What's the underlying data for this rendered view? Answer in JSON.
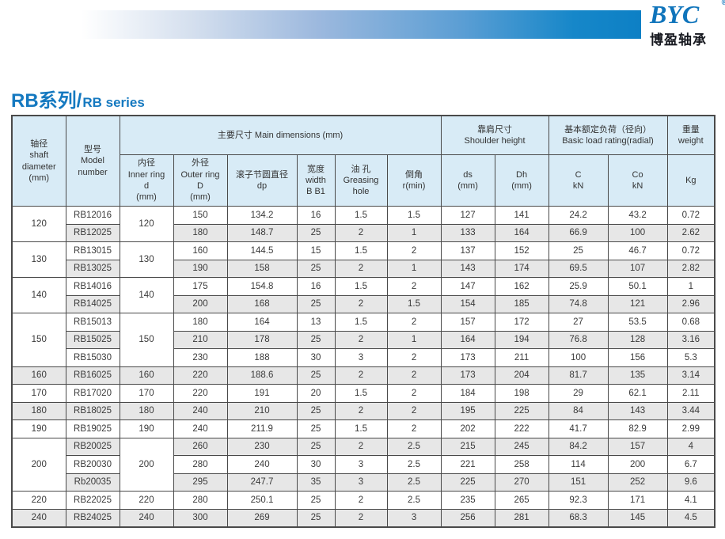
{
  "brand": {
    "logo_text": "BYC",
    "registered": "®",
    "logo_subtext": "博盈轴承"
  },
  "page": {
    "title_zh": "RB系列/",
    "title_en": "RB series"
  },
  "colors": {
    "brand_blue": "#0d80c5",
    "title_blue": "#1579c0",
    "header_cell_bg": "#d8ebf6",
    "alt_row_bg": "#e7e7e7",
    "table_border": "#4a4a4a"
  },
  "table": {
    "group_headers": {
      "main_dimensions": "主要尺寸 Main dimensions (mm)",
      "shoulder_height": "靠肩尺寸\nShoulder height",
      "basic_load": "基本额定负荷（径向）\nBasic load rating(radial)",
      "weight": "重量\nweight"
    },
    "columns": {
      "shaft": "轴径\nshaft\ndiameter\n(mm)",
      "model": "型号\nModel\nnumber",
      "inner": "内径\nInner ring\nd\n(mm)",
      "outer": "外径\nOuter ring\nD\n(mm)",
      "dp": "滚子节圆直径\ndp",
      "width": "宽度\nwidth\nB B1",
      "grease": "油 孔\nGreasing\nhole",
      "chamfer": "倒角\nr(min)",
      "ds": "ds\n(mm)",
      "dh": "Dh\n(mm)",
      "c": "C\nkN",
      "co": "Co\nkN",
      "kg": "Kg"
    },
    "groups": [
      {
        "shaft": "120",
        "inner": "120",
        "rows": [
          [
            "RB12016",
            "150",
            "134.2",
            "16",
            "1.5",
            "1.5",
            "127",
            "141",
            "24.2",
            "43.2",
            "0.72"
          ],
          [
            "RB12025",
            "180",
            "148.7",
            "25",
            "2",
            "1",
            "133",
            "164",
            "66.9",
            "100",
            "2.62"
          ]
        ]
      },
      {
        "shaft": "130",
        "inner": "130",
        "rows": [
          [
            "RB13015",
            "160",
            "144.5",
            "15",
            "1.5",
            "2",
            "137",
            "152",
            "25",
            "46.7",
            "0.72"
          ],
          [
            "RB13025",
            "190",
            "158",
            "25",
            "2",
            "1",
            "143",
            "174",
            "69.5",
            "107",
            "2.82"
          ]
        ]
      },
      {
        "shaft": "140",
        "inner": "140",
        "rows": [
          [
            "RB14016",
            "175",
            "154.8",
            "16",
            "1.5",
            "2",
            "147",
            "162",
            "25.9",
            "50.1",
            "1"
          ],
          [
            "RB14025",
            "200",
            "168",
            "25",
            "2",
            "1.5",
            "154",
            "185",
            "74.8",
            "121",
            "2.96"
          ]
        ]
      },
      {
        "shaft": "150",
        "inner": "150",
        "rows": [
          [
            "RB15013",
            "180",
            "164",
            "13",
            "1.5",
            "2",
            "157",
            "172",
            "27",
            "53.5",
            "0.68"
          ],
          [
            "RB15025",
            "210",
            "178",
            "25",
            "2",
            "1",
            "164",
            "194",
            "76.8",
            "128",
            "3.16"
          ],
          [
            "RB15030",
            "230",
            "188",
            "30",
            "3",
            "2",
            "173",
            "211",
            "100",
            "156",
            "5.3"
          ]
        ]
      },
      {
        "shaft": "160",
        "inner": "160",
        "rows": [
          [
            "RB16025",
            "220",
            "188.6",
            "25",
            "2",
            "2",
            "173",
            "204",
            "81.7",
            "135",
            "3.14"
          ]
        ]
      },
      {
        "shaft": "170",
        "inner": "170",
        "rows": [
          [
            "RB17020",
            "220",
            "191",
            "20",
            "1.5",
            "2",
            "184",
            "198",
            "29",
            "62.1",
            "2.11"
          ]
        ]
      },
      {
        "shaft": "180",
        "inner": "180",
        "rows": [
          [
            "RB18025",
            "240",
            "210",
            "25",
            "2",
            "2",
            "195",
            "225",
            "84",
            "143",
            "3.44"
          ]
        ]
      },
      {
        "shaft": "190",
        "inner": "190",
        "rows": [
          [
            "RB19025",
            "240",
            "211.9",
            "25",
            "1.5",
            "2",
            "202",
            "222",
            "41.7",
            "82.9",
            "2.99"
          ]
        ]
      },
      {
        "shaft": "200",
        "inner": "200",
        "rows": [
          [
            "RB20025",
            "260",
            "230",
            "25",
            "2",
            "2.5",
            "215",
            "245",
            "84.2",
            "157",
            "4"
          ],
          [
            "RB20030",
            "280",
            "240",
            "30",
            "3",
            "2.5",
            "221",
            "258",
            "114",
            "200",
            "6.7"
          ],
          [
            "Rb20035",
            "295",
            "247.7",
            "35",
            "3",
            "2.5",
            "225",
            "270",
            "151",
            "252",
            "9.6"
          ]
        ]
      },
      {
        "shaft": "220",
        "inner": "220",
        "rows": [
          [
            "RB22025",
            "280",
            "250.1",
            "25",
            "2",
            "2.5",
            "235",
            "265",
            "92.3",
            "171",
            "4.1"
          ]
        ]
      },
      {
        "shaft": "240",
        "inner": "240",
        "rows": [
          [
            "RB24025",
            "300",
            "269",
            "25",
            "2",
            "3",
            "256",
            "281",
            "68.3",
            "145",
            "4.5"
          ]
        ]
      }
    ]
  }
}
